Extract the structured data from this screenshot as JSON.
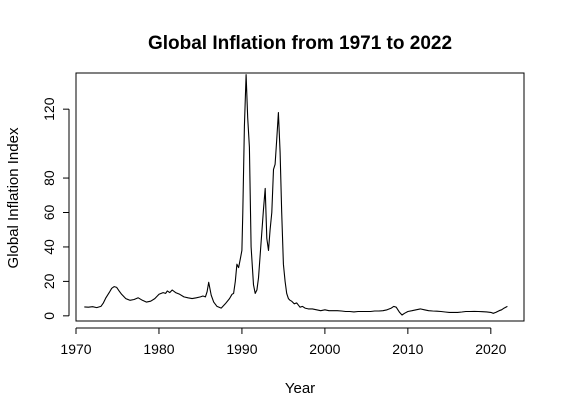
{
  "chart_data": {
    "type": "line",
    "title": "Global Inflation from 1971 to 2022",
    "xlabel": "Year",
    "ylabel": "Global Inflation Index",
    "xlim": [
      1970,
      2024
    ],
    "ylim": [
      -3,
      141
    ],
    "x_ticks": [
      1970,
      1980,
      1990,
      2000,
      2010,
      2020
    ],
    "y_ticks": [
      0,
      20,
      40,
      60,
      80,
      120
    ],
    "grid": false,
    "line_color": "#000000",
    "series": [
      {
        "x": [
          1971.0,
          1971.5,
          1972.0,
          1972.5,
          1973.0,
          1973.3,
          1973.6,
          1974.0,
          1974.3,
          1974.6,
          1974.9,
          1975.2,
          1975.5,
          1976.0,
          1976.5,
          1977.0,
          1977.5,
          1978.0,
          1978.5,
          1979.0,
          1979.5,
          1980.0,
          1980.5,
          1980.8,
          1981.0,
          1981.3,
          1981.6,
          1982.0,
          1982.5,
          1983.0,
          1983.5,
          1984.0,
          1984.5,
          1985.0,
          1985.3,
          1985.6,
          1985.8,
          1986.0,
          1986.3,
          1986.6,
          1987.0,
          1987.5,
          1988.0,
          1988.5,
          1988.8,
          1989.0,
          1989.2,
          1989.4,
          1989.6,
          1989.8,
          1990.0,
          1990.1,
          1990.3,
          1990.5,
          1990.7,
          1990.9,
          1991.1,
          1991.4,
          1991.6,
          1991.8,
          1992.0,
          1992.3,
          1992.6,
          1992.8,
          1993.0,
          1993.2,
          1993.4,
          1993.6,
          1993.8,
          1994.0,
          1994.2,
          1994.4,
          1994.6,
          1994.8,
          1995.0,
          1995.2,
          1995.4,
          1995.6,
          1995.8,
          1996.0,
          1996.3,
          1996.6,
          1997.0,
          1997.3,
          1997.6,
          1998.0,
          1998.5,
          1999.0,
          1999.5,
          2000.0,
          2000.5,
          2001.0,
          2001.5,
          2002.0,
          2002.5,
          2003.0,
          2003.5,
          2004.0,
          2004.5,
          2005.0,
          2005.5,
          2006.0,
          2006.5,
          2007.0,
          2007.5,
          2008.0,
          2008.3,
          2008.6,
          2009.0,
          2009.3,
          2009.6,
          2010.0,
          2010.5,
          2011.0,
          2011.5,
          2012.0,
          2012.5,
          2013.0,
          2013.5,
          2014.0,
          2014.5,
          2015.0,
          2015.5,
          2016.0,
          2016.5,
          2017.0,
          2017.5,
          2018.0,
          2018.5,
          2019.0,
          2019.5,
          2020.0,
          2020.3,
          2020.6,
          2021.0,
          2021.3,
          2021.6,
          2022.0
        ],
        "y": [
          5.2,
          5.0,
          5.3,
          4.8,
          5.5,
          7.5,
          10.5,
          13.5,
          16.0,
          17.0,
          16.5,
          14.5,
          12.5,
          10.0,
          9.0,
          9.5,
          10.5,
          9.0,
          8.0,
          8.5,
          10.0,
          12.5,
          13.5,
          13.0,
          14.5,
          13.5,
          15.0,
          13.5,
          12.5,
          11.0,
          10.5,
          10.0,
          10.5,
          11.0,
          11.5,
          11.0,
          14.0,
          19.5,
          12.0,
          8.0,
          5.5,
          4.5,
          7.0,
          10.0,
          12.5,
          13.0,
          20.0,
          30.0,
          28.0,
          33.0,
          38.0,
          60.0,
          110.0,
          140.0,
          115.0,
          98.0,
          40.0,
          18.0,
          13.0,
          15.0,
          22.0,
          42.0,
          62.0,
          74.0,
          45.0,
          38.0,
          50.0,
          60.0,
          85.0,
          88.0,
          103.0,
          118.0,
          95.0,
          60.0,
          30.0,
          20.0,
          13.0,
          10.0,
          9.0,
          8.5,
          7.0,
          7.5,
          5.0,
          5.5,
          4.5,
          4.0,
          4.0,
          3.5,
          3.0,
          3.5,
          3.0,
          3.0,
          3.0,
          2.8,
          2.5,
          2.5,
          2.3,
          2.5,
          2.5,
          2.5,
          2.5,
          2.8,
          2.8,
          3.0,
          3.5,
          4.5,
          5.5,
          5.0,
          2.0,
          0.5,
          1.5,
          2.5,
          3.0,
          3.5,
          4.0,
          3.5,
          3.0,
          2.8,
          2.7,
          2.5,
          2.2,
          2.0,
          2.0,
          2.0,
          2.2,
          2.5,
          2.5,
          2.6,
          2.5,
          2.4,
          2.3,
          2.0,
          1.5,
          2.0,
          3.0,
          3.5,
          4.5,
          5.5
        ]
      }
    ]
  }
}
